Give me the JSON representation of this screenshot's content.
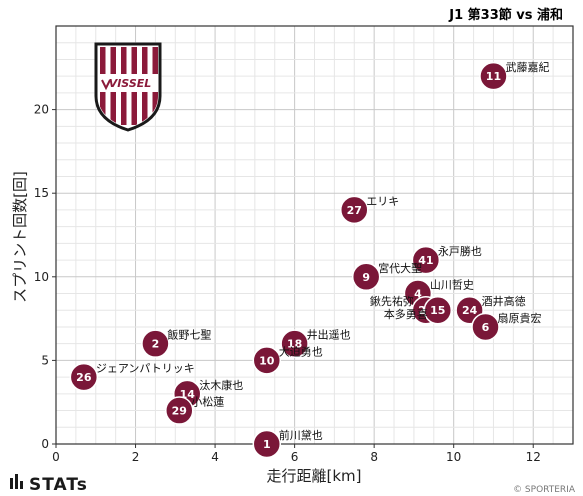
{
  "header": {
    "title": "J1 第33節 vs 浦和"
  },
  "branding": {
    "logo_text": "VISSEL",
    "stats_text": "STATs",
    "copyright": "© SPORTERIA"
  },
  "colors": {
    "point": "#7a1738",
    "point_stroke": "#ffffff",
    "grid": "#cccccc",
    "axis": "#333333",
    "logo_stripe": "#8b1a3a"
  },
  "chart_data": {
    "type": "scatter",
    "title": "J1 第33節 vs 浦和",
    "xlabel": "走行距離[km]",
    "ylabel": "スプリント回数[回]",
    "xlim": [
      0,
      13
    ],
    "ylim": [
      0,
      25
    ],
    "x_ticks": [
      0,
      2,
      4,
      6,
      8,
      10,
      12
    ],
    "y_ticks": [
      0,
      5,
      10,
      15,
      20
    ],
    "grid": true,
    "points": [
      {
        "number": "11",
        "name": "武藤嘉紀",
        "x": 11.0,
        "y": 22
      },
      {
        "number": "27",
        "name": "エリキ",
        "x": 7.5,
        "y": 14
      },
      {
        "number": "41",
        "name": "永戸勝也",
        "x": 9.3,
        "y": 11
      },
      {
        "number": "9",
        "name": "宮代大聖",
        "x": 7.8,
        "y": 10
      },
      {
        "number": "4",
        "name": "山川哲史",
        "x": 9.1,
        "y": 9
      },
      {
        "number": "25",
        "name": "鍬先祐弥",
        "x": 9.3,
        "y": 8
      },
      {
        "number": "15",
        "name": "本多勇喜",
        "x": 9.6,
        "y": 8
      },
      {
        "number": "24",
        "name": "酒井高徳",
        "x": 10.4,
        "y": 8
      },
      {
        "number": "6",
        "name": "扇原貴宏",
        "x": 10.8,
        "y": 7
      },
      {
        "number": "2",
        "name": "飯野七聖",
        "x": 2.5,
        "y": 6
      },
      {
        "number": "18",
        "name": "井出遥也",
        "x": 6.0,
        "y": 6
      },
      {
        "number": "10",
        "name": "大迫勇也",
        "x": 5.3,
        "y": 5
      },
      {
        "number": "26",
        "name": "ジェアンパトリッキ",
        "x": 0.7,
        "y": 4
      },
      {
        "number": "14",
        "name": "汰木康也",
        "x": 3.3,
        "y": 3
      },
      {
        "number": "29",
        "name": "小松蓮",
        "x": 3.1,
        "y": 2
      },
      {
        "number": "1",
        "name": "前川黛也",
        "x": 5.3,
        "y": 0
      }
    ]
  }
}
